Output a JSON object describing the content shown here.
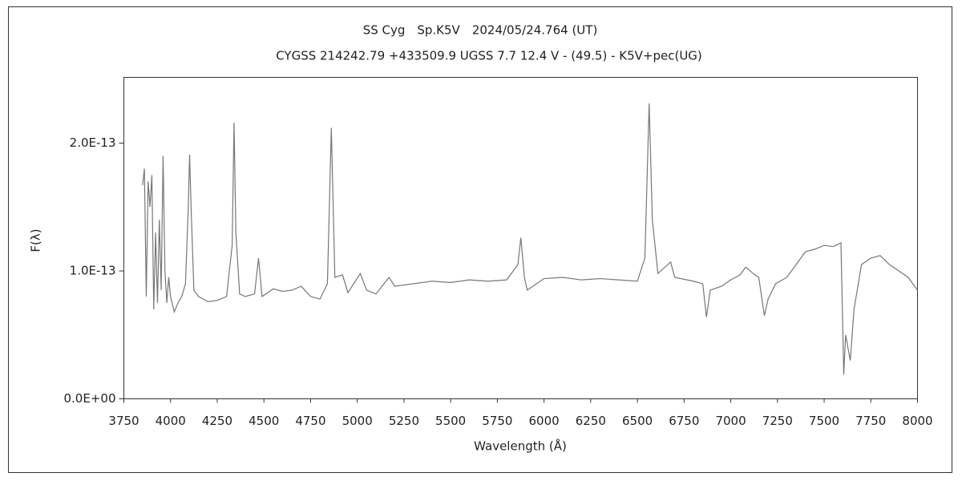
{
  "chart_data": {
    "type": "line",
    "title": "SS Cyg　Sp.K5V　2024/05/24.764 (UT)",
    "subtitle": "CYGSS 214242.79 +433509.9 UGSS 7.7 12.4 V - (49.5) - K5V+pec(UG)",
    "x_label": "Wavelength (Å)",
    "y_label": "F(λ)",
    "color": "#777777",
    "x": [
      3850,
      3860,
      3870,
      3880,
      3890,
      3900,
      3910,
      3920,
      3930,
      3940,
      3950,
      3960,
      3970,
      3980,
      3990,
      4000,
      4020,
      4040,
      4060,
      4080,
      4095,
      4102,
      4110,
      4125,
      4150,
      4200,
      4250,
      4300,
      4330,
      4340,
      4350,
      4370,
      4400,
      4450,
      4471,
      4490,
      4550,
      4600,
      4650,
      4700,
      4750,
      4800,
      4840,
      4861,
      4880,
      4921,
      4950,
      5016,
      5050,
      5100,
      5170,
      5200,
      5300,
      5400,
      5500,
      5600,
      5700,
      5800,
      5860,
      5876,
      5895,
      5910,
      6000,
      6100,
      6200,
      6300,
      6400,
      6500,
      6540,
      6563,
      6580,
      6610,
      6678,
      6700,
      6800,
      6850,
      6870,
      6890,
      6950,
      7000,
      7050,
      7080,
      7120,
      7150,
      7180,
      7200,
      7240,
      7300,
      7350,
      7400,
      7450,
      7500,
      7550,
      7590,
      7605,
      7615,
      7640,
      7660,
      7700,
      7750,
      7800,
      7850,
      7900,
      7950,
      8000
    ],
    "values": [
      1.67e-13,
      1.8e-13,
      8e-14,
      1.7e-13,
      1.5e-13,
      1.75e-13,
      7e-14,
      1.3e-13,
      7.5e-14,
      1.4e-13,
      8.5e-14,
      1.9e-13,
      1e-13,
      7.5e-14,
      9.5e-14,
      8e-14,
      6.8e-14,
      7.5e-14,
      8e-14,
      9e-14,
      1.5e-13,
      1.91e-13,
      1.5e-13,
      8.5e-14,
      8e-14,
      7.6e-14,
      7.7e-14,
      8e-14,
      1.2e-13,
      2.16e-13,
      1.3e-13,
      8.2e-14,
      8e-14,
      8.2e-14,
      1.1e-13,
      8e-14,
      8.6e-14,
      8.4e-14,
      8.5e-14,
      8.8e-14,
      8e-14,
      7.8e-14,
      9e-14,
      2.12e-13,
      9.5e-14,
      9.7e-14,
      8.3e-14,
      9.8e-14,
      8.5e-14,
      8.2e-14,
      9.5e-14,
      8.8e-14,
      9e-14,
      9.2e-14,
      9.1e-14,
      9.3e-14,
      9.2e-14,
      9.3e-14,
      1.05e-13,
      1.26e-13,
      9.5e-14,
      8.5e-14,
      9.4e-14,
      9.5e-14,
      9.3e-14,
      9.4e-14,
      9.3e-14,
      9.2e-14,
      1.1e-13,
      2.31e-13,
      1.4e-13,
      9.8e-14,
      1.07e-13,
      9.5e-14,
      9.2e-14,
      9e-14,
      6.4e-14,
      8.5e-14,
      8.8e-14,
      9.3e-14,
      9.7e-14,
      1.03e-13,
      9.8e-14,
      9.5e-14,
      6.5e-14,
      7.8e-14,
      9e-14,
      9.5e-14,
      1.05e-13,
      1.15e-13,
      1.17e-13,
      1.2e-13,
      1.19e-13,
      1.22e-13,
      1.9e-14,
      5e-14,
      3e-14,
      7e-14,
      1.05e-13,
      1.1e-13,
      1.12e-13,
      1.05e-13,
      1e-13,
      9.5e-14,
      8.5e-14
    ],
    "xlim": [
      3750,
      8000
    ],
    "xticks": [
      3750,
      4000,
      4250,
      4500,
      4750,
      5000,
      5250,
      5500,
      5750,
      6000,
      6250,
      6500,
      6750,
      7000,
      7250,
      7500,
      7750,
      8000
    ],
    "ylim": [
      0,
      2.514e-13
    ],
    "yticks": [
      {
        "value": 0,
        "label": "0.0E+00"
      },
      {
        "value": 1e-13,
        "label": "1.0E-13"
      },
      {
        "value": 2e-13,
        "label": "2.0E-13"
      }
    ]
  }
}
